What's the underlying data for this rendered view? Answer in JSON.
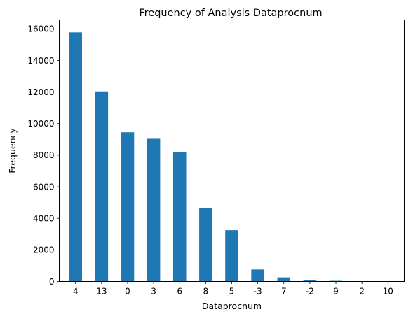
{
  "chart_data": {
    "type": "bar",
    "title": "Frequency of Analysis Dataprocnum",
    "xlabel": "Dataprocnum",
    "ylabel": "Frequency",
    "categories": [
      "4",
      "13",
      "0",
      "3",
      "6",
      "8",
      "5",
      "-3",
      "7",
      "-2",
      "9",
      "2",
      "10"
    ],
    "values": [
      15780,
      12040,
      9450,
      9040,
      8200,
      4640,
      3250,
      760,
      260,
      80,
      40,
      10,
      5
    ],
    "ylim": [
      0,
      16570
    ],
    "yticks": [
      0,
      2000,
      4000,
      6000,
      8000,
      10000,
      12000,
      14000,
      16000
    ],
    "grid": false,
    "legend": "none",
    "bar_color": "#1f77b4"
  }
}
